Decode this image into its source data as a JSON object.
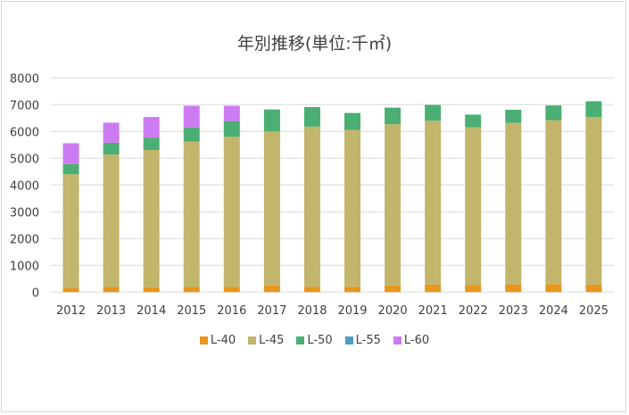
{
  "chart_data": {
    "type": "bar",
    "stacked": true,
    "title": "年別推移(単位:千㎡)",
    "xlabel": "",
    "ylabel": "",
    "ylim": [
      0,
      8000
    ],
    "yticks": [
      0,
      1000,
      2000,
      3000,
      4000,
      5000,
      6000,
      7000,
      8000
    ],
    "grid": true,
    "legend_position": "bottom",
    "categories": [
      "2012",
      "2013",
      "2014",
      "2015",
      "2016",
      "2017",
      "2018",
      "2019",
      "2020",
      "2021",
      "2022",
      "2023",
      "2024",
      "2025"
    ],
    "series": [
      {
        "name": "L-40",
        "color": "#E8961E",
        "values": [
          150,
          190,
          180,
          190,
          190,
          250,
          200,
          200,
          250,
          280,
          270,
          290,
          300,
          280
        ]
      },
      {
        "name": "L-45",
        "color": "#C2B56C",
        "values": [
          4250,
          4950,
          5130,
          5430,
          5610,
          5750,
          5980,
          5860,
          6020,
          6120,
          5890,
          6030,
          6120,
          6260
        ]
      },
      {
        "name": "L-50",
        "color": "#4BAE72",
        "values": [
          380,
          440,
          460,
          520,
          590,
          820,
          730,
          630,
          620,
          590,
          470,
          490,
          550,
          590
        ]
      },
      {
        "name": "L-55",
        "color": "#4F9BC2",
        "values": [
          0,
          0,
          0,
          0,
          0,
          0,
          0,
          0,
          0,
          0,
          0,
          0,
          0,
          0
        ]
      },
      {
        "name": "L-60",
        "color": "#CC7BF2",
        "values": [
          780,
          750,
          770,
          820,
          570,
          0,
          0,
          0,
          0,
          0,
          0,
          0,
          0,
          0
        ]
      }
    ]
  }
}
